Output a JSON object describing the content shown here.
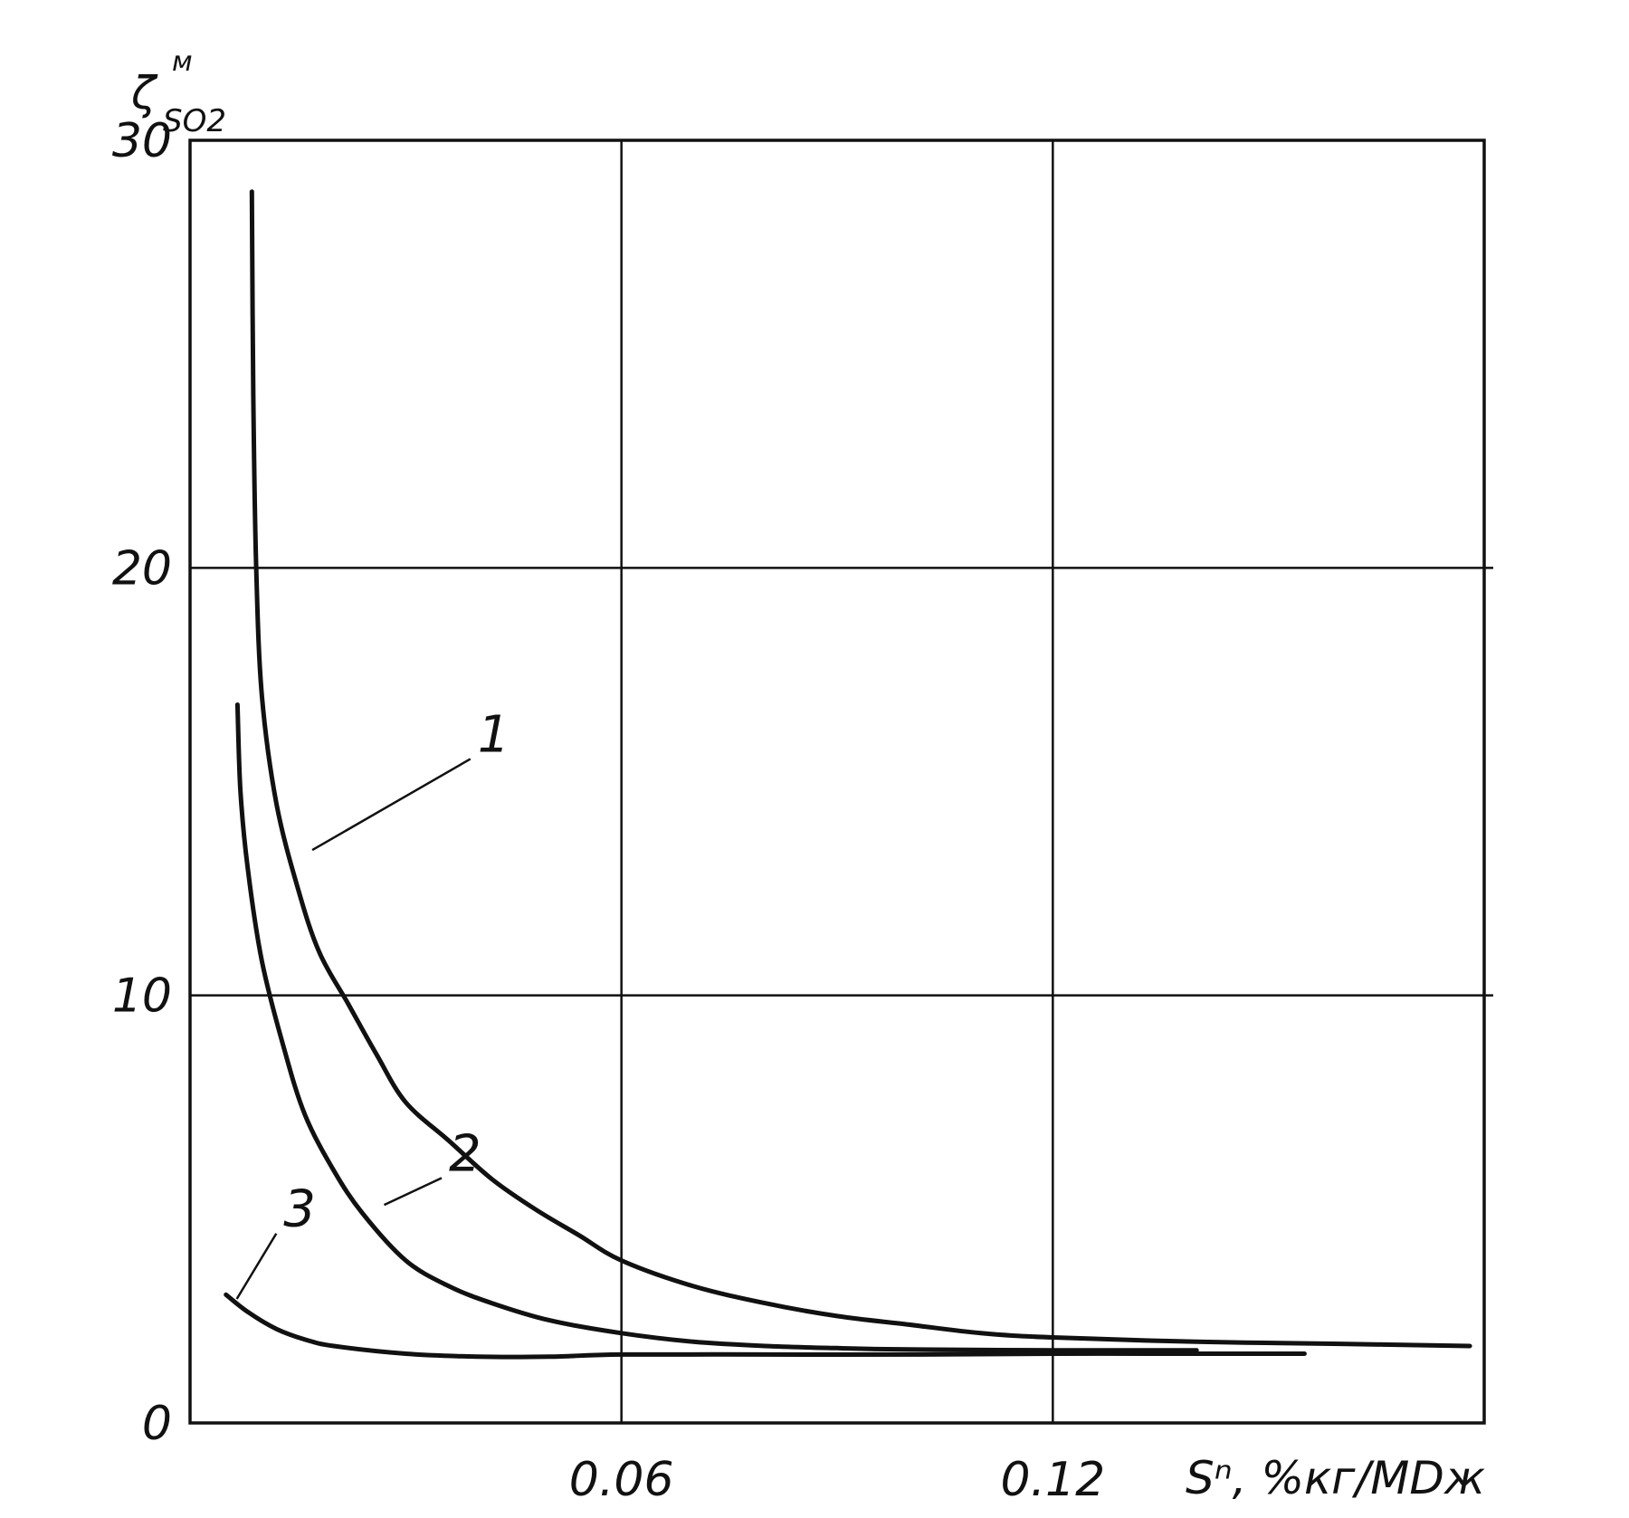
{
  "chart_data": {
    "type": "line",
    "ylabel": "ζ",
    "ylabel_sup": "м",
    "ylabel_sub": "SO2",
    "xlabel": "Sⁿ, %кг/МDж",
    "xlim": [
      0,
      0.18
    ],
    "ylim": [
      0,
      30
    ],
    "x_ticks": [
      {
        "value": 0.06,
        "label": "0.06"
      },
      {
        "value": 0.12,
        "label": "0.12"
      }
    ],
    "y_ticks": [
      {
        "value": 0,
        "label": "0"
      },
      {
        "value": 10,
        "label": "10"
      },
      {
        "value": 20,
        "label": "20"
      },
      {
        "value": 30,
        "label": "30"
      }
    ],
    "grid": true,
    "legend": "none",
    "series": [
      {
        "name": "1",
        "label_anchor": {
          "x": 0.017,
          "y": 13.4
        },
        "label_text_at": {
          "x": 0.04,
          "y": 15.7
        },
        "points": [
          [
            0.0086,
            28.8
          ],
          [
            0.0088,
            24.0
          ],
          [
            0.0092,
            20.0
          ],
          [
            0.01,
            17.0
          ],
          [
            0.012,
            14.5
          ],
          [
            0.015,
            12.5
          ],
          [
            0.018,
            11.0
          ],
          [
            0.022,
            9.8
          ],
          [
            0.026,
            8.6
          ],
          [
            0.03,
            7.5
          ],
          [
            0.036,
            6.6
          ],
          [
            0.042,
            5.7
          ],
          [
            0.048,
            5.0
          ],
          [
            0.054,
            4.4
          ],
          [
            0.06,
            3.8
          ],
          [
            0.07,
            3.2
          ],
          [
            0.08,
            2.8
          ],
          [
            0.09,
            2.5
          ],
          [
            0.1,
            2.3
          ],
          [
            0.11,
            2.1
          ],
          [
            0.12,
            2.0
          ],
          [
            0.14,
            1.9
          ],
          [
            0.16,
            1.85
          ],
          [
            0.178,
            1.8
          ]
        ]
      },
      {
        "name": "2",
        "label_anchor": {
          "x": 0.027,
          "y": 5.1
        },
        "label_text_at": {
          "x": 0.036,
          "y": 5.9
        },
        "points": [
          [
            0.0066,
            16.8
          ],
          [
            0.007,
            14.8
          ],
          [
            0.008,
            13.0
          ],
          [
            0.01,
            10.8
          ],
          [
            0.013,
            8.8
          ],
          [
            0.016,
            7.2
          ],
          [
            0.02,
            5.9
          ],
          [
            0.024,
            4.9
          ],
          [
            0.03,
            3.8
          ],
          [
            0.036,
            3.2
          ],
          [
            0.042,
            2.8
          ],
          [
            0.05,
            2.4
          ],
          [
            0.06,
            2.1
          ],
          [
            0.07,
            1.9
          ],
          [
            0.08,
            1.8
          ],
          [
            0.09,
            1.75
          ],
          [
            0.1,
            1.72
          ],
          [
            0.12,
            1.7
          ],
          [
            0.14,
            1.7
          ]
        ]
      },
      {
        "name": "3",
        "label_anchor": {
          "x": 0.0065,
          "y": 2.9
        },
        "label_text_at": {
          "x": 0.013,
          "y": 4.6
        },
        "points": [
          [
            0.005,
            3.0
          ],
          [
            0.008,
            2.6
          ],
          [
            0.012,
            2.2
          ],
          [
            0.016,
            1.95
          ],
          [
            0.02,
            1.8
          ],
          [
            0.03,
            1.62
          ],
          [
            0.04,
            1.55
          ],
          [
            0.05,
            1.55
          ],
          [
            0.06,
            1.6
          ],
          [
            0.08,
            1.6
          ],
          [
            0.1,
            1.6
          ],
          [
            0.12,
            1.62
          ],
          [
            0.14,
            1.62
          ],
          [
            0.155,
            1.62
          ]
        ]
      }
    ]
  }
}
